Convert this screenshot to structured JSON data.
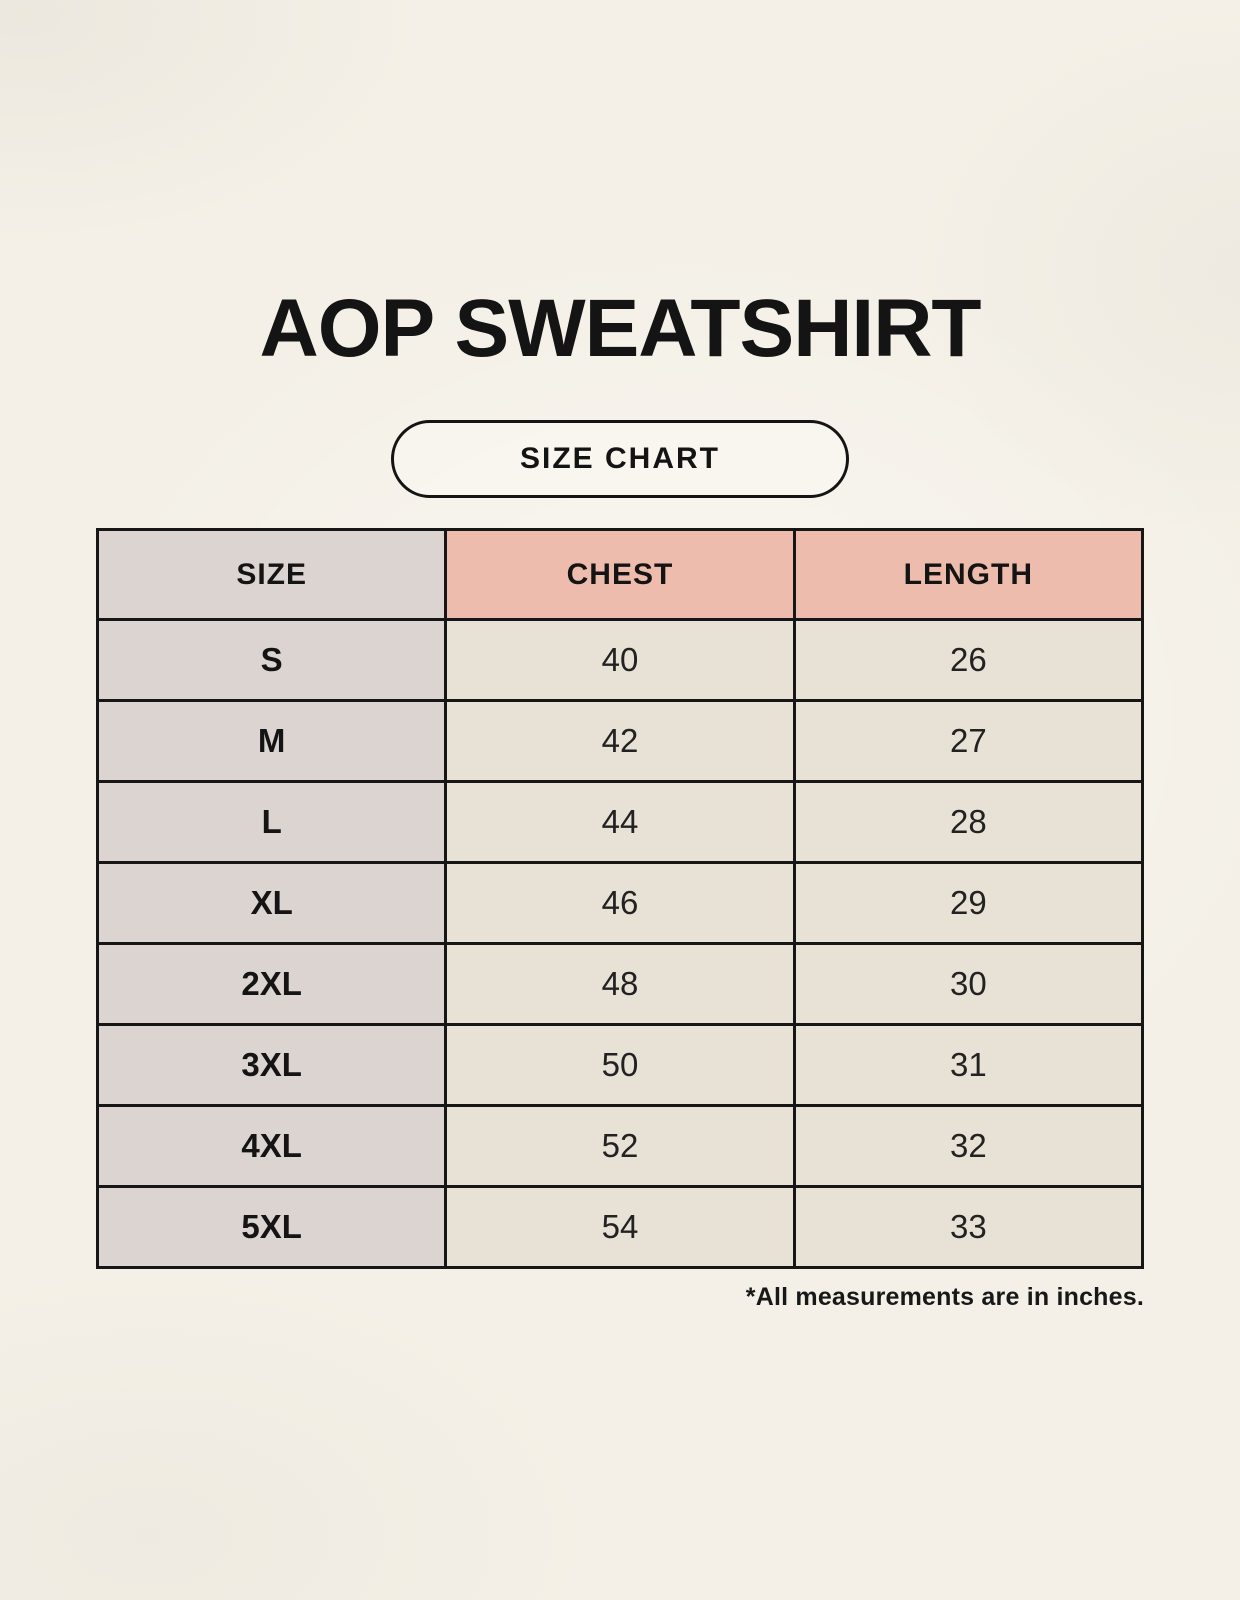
{
  "title": "AOP SWEATSHIRT",
  "badge_label": "SIZE CHART",
  "footnote": "*All measurements are in inches.",
  "colors": {
    "background": "#f4f0e7",
    "size_column": "#dbd4d0",
    "header_accent": "#eebcac",
    "value_cell": "#e8e1d5",
    "border": "#161616",
    "text": "#141414"
  },
  "chart_data": {
    "type": "table",
    "title": "AOP SWEATSHIRT",
    "columns": [
      "SIZE",
      "CHEST",
      "LENGTH"
    ],
    "units": "inches",
    "rows": [
      {
        "size": "S",
        "chest": 40,
        "length": 26
      },
      {
        "size": "M",
        "chest": 42,
        "length": 27
      },
      {
        "size": "L",
        "chest": 44,
        "length": 28
      },
      {
        "size": "XL",
        "chest": 46,
        "length": 29
      },
      {
        "size": "2XL",
        "chest": 48,
        "length": 30
      },
      {
        "size": "3XL",
        "chest": 50,
        "length": 31
      },
      {
        "size": "4XL",
        "chest": 52,
        "length": 32
      },
      {
        "size": "5XL",
        "chest": 54,
        "length": 33
      }
    ]
  }
}
